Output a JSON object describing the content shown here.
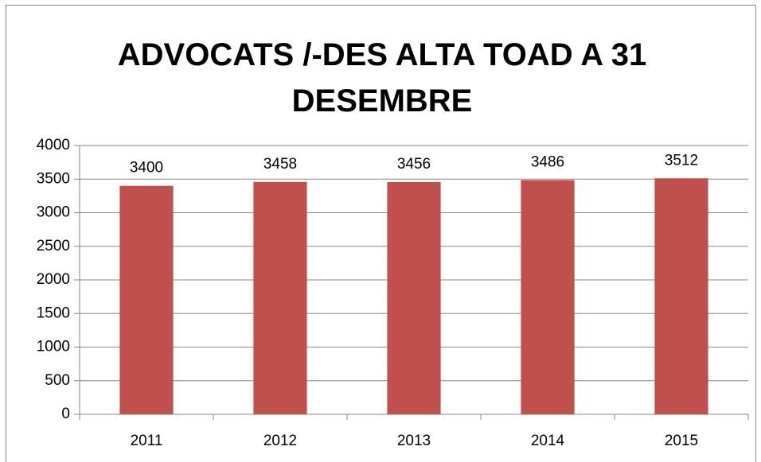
{
  "chart_data": {
    "type": "bar",
    "title": "ADVOCATS /-DES ALTA TOAD A 31 DESEMBRE",
    "categories": [
      "2011",
      "2012",
      "2013",
      "2014",
      "2015"
    ],
    "values": [
      3400,
      3458,
      3456,
      3486,
      3512
    ],
    "color": "#c0504d",
    "ylim": [
      0,
      4000
    ],
    "yticks": [
      0,
      500,
      1000,
      1500,
      2000,
      2500,
      3000,
      3500,
      4000
    ],
    "grid": true
  }
}
